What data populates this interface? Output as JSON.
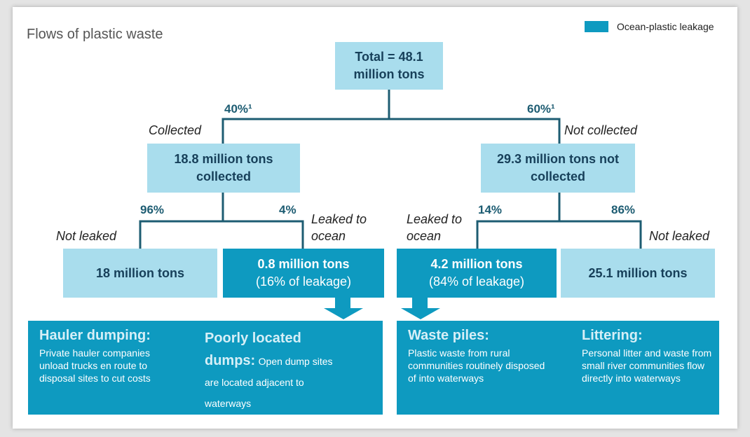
{
  "title": "Flows of plastic waste",
  "legend": {
    "label": "Ocean-plastic leakage"
  },
  "nodes": {
    "total": {
      "label": "Total = 48.1 million tons"
    },
    "collected": {
      "label": "18.8 million tons collected"
    },
    "not_collected": {
      "label": "29.3 million tons not collected"
    },
    "collected_not_leaked": {
      "label": "18 million tons"
    },
    "collected_leaked": {
      "label": "0.8 million tons",
      "sub": "(16% of leakage)"
    },
    "not_collected_leaked": {
      "label": "4.2 million tons",
      "sub": "(84% of leakage)"
    },
    "not_collected_not_leaked": {
      "label": "25.1 million tons"
    }
  },
  "branches": {
    "collected": {
      "share": "40%¹",
      "label": "Collected"
    },
    "not_collected": {
      "share": "60%¹",
      "label": "Not collected"
    },
    "collected_not_leaked": {
      "share": "96%",
      "label": "Not leaked"
    },
    "collected_leaked": {
      "share": "4%",
      "label": "Leaked to ocean"
    },
    "not_collected_leaked": {
      "share": "14%",
      "label": "Leaked to ocean"
    },
    "not_collected_not_leaked": {
      "share": "86%",
      "label": "Not leaked"
    }
  },
  "causes": [
    {
      "title": "Hauler dumping:",
      "text": "Private hauler companies unload trucks en route to disposal sites to cut costs"
    },
    {
      "title": "Poorly located dumps:",
      "text": "Open dump sites are located adjacent to waterways"
    },
    {
      "title": "Waste piles:",
      "text": "Plastic waste from rural communities routinely disposed of into waterways"
    },
    {
      "title": "Littering:",
      "text": "Personal litter and waste from small river communities flow directly into waterways"
    }
  ]
}
